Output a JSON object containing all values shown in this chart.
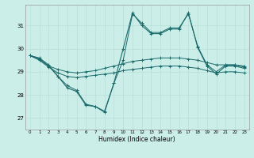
{
  "title": "",
  "xlabel": "Humidex (Indice chaleur)",
  "background_color": "#cceee8",
  "grid_color": "#b8ddd8",
  "line_color": "#1a6b6b",
  "x_ticks": [
    0,
    1,
    2,
    3,
    4,
    5,
    6,
    7,
    8,
    9,
    10,
    11,
    12,
    13,
    14,
    15,
    16,
    17,
    18,
    19,
    20,
    21,
    22,
    23
  ],
  "y_ticks": [
    27,
    28,
    29,
    30,
    31
  ],
  "ylim": [
    26.5,
    31.9
  ],
  "xlim": [
    -0.5,
    23.5
  ],
  "series": {
    "max": [
      29.7,
      29.6,
      29.3,
      28.8,
      28.4,
      28.2,
      27.6,
      27.5,
      27.3,
      28.5,
      29.5,
      31.5,
      31.1,
      30.7,
      30.7,
      30.9,
      30.9,
      31.5,
      30.1,
      29.3,
      29.0,
      29.3,
      29.3,
      29.2
    ],
    "mean_high": [
      29.7,
      29.55,
      29.25,
      29.1,
      29.0,
      28.95,
      29.0,
      29.05,
      29.15,
      29.25,
      29.35,
      29.45,
      29.5,
      29.55,
      29.6,
      29.6,
      29.6,
      29.55,
      29.5,
      29.4,
      29.3,
      29.3,
      29.3,
      29.25
    ],
    "mean_low": [
      29.7,
      29.5,
      29.2,
      28.95,
      28.8,
      28.75,
      28.8,
      28.85,
      28.9,
      28.95,
      29.05,
      29.1,
      29.15,
      29.2,
      29.25,
      29.25,
      29.25,
      29.2,
      29.15,
      29.05,
      28.95,
      29.0,
      29.0,
      28.95
    ],
    "actual": [
      29.7,
      29.55,
      29.25,
      28.8,
      28.3,
      28.15,
      27.55,
      27.5,
      27.25,
      28.5,
      30.0,
      31.55,
      31.0,
      30.65,
      30.65,
      30.85,
      30.85,
      31.55,
      30.05,
      29.25,
      28.9,
      29.25,
      29.25,
      29.15
    ]
  }
}
